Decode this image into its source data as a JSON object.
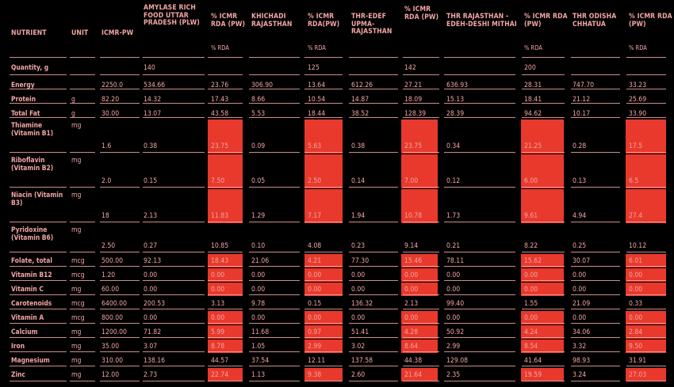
{
  "headers": [
    "NUTRIENT",
    "UNIT",
    "ICMR-PW",
    "AMYLASE RICH FOOD UTTAR PRADESH (PLW)",
    "% ICMR RDA (PW)",
    "KHICHADI RAJASTHAN",
    "% ICMR RDA(PW)",
    "THR-EDEF UPMA-RAJASTHAN",
    "% ICMR RDA (PW)",
    "THR RAJASTHAN - EDEH-DESHI MITHAI",
    "% ICMR RDA (PW)",
    "THR ODISHA CHHATUA",
    "% ICMR RDA (PW)"
  ],
  "subheaders": [
    "% RDA",
    "% RDA",
    "% RDA",
    "% RDA"
  ],
  "rows": [
    {
      "n": "Quantity, g",
      "u": "",
      "v": [
        "",
        "140",
        "",
        "",
        "125",
        "",
        "142",
        "",
        "200",
        "",
        ""
      ]
    },
    {
      "n": "Energy",
      "u": "",
      "v": [
        "2250.0",
        "534.66",
        "23.76",
        "306.90",
        "13.64",
        "612.26",
        "27.21",
        "636.93",
        "28.31",
        "747.70",
        "33.23"
      ]
    },
    {
      "n": "Protein",
      "u": "g",
      "v": [
        "82.20",
        "14.32",
        "17.43",
        "8.66",
        "10.54",
        "14.87",
        "18.09",
        "15.13",
        "18.41",
        "21.12",
        "25.69"
      ]
    },
    {
      "n": "Total Fat",
      "u": "g",
      "v": [
        "30.00",
        "13.07",
        "43.58",
        "5.53",
        "18.44",
        "38.52",
        "128.39",
        "28.39",
        "94.62",
        "10.17",
        "33.90"
      ]
    },
    {
      "n": "Thiamine (Vitamin B1)",
      "u": "mg",
      "v": [
        "1.6",
        "0.38",
        "23.75",
        "0.09",
        "5.63",
        "0.38",
        "23.75",
        "0.34",
        "21.25",
        "0.28",
        "17.5"
      ]
    },
    {
      "n": "Riboflavin (Vitamin B2)",
      "u": "mg",
      "v": [
        "2.0",
        "0.15",
        "7.50",
        "0.05",
        "2.50",
        "0.14",
        "7.00",
        "0.12",
        "6.00",
        "0.13",
        "6.5"
      ]
    },
    {
      "n": "Niacin (Vitamin B3)",
      "u": "mg",
      "v": [
        "18",
        "2.13",
        "11.83",
        "1.29",
        "7.17",
        "1.94",
        "10.78",
        "1.73",
        "9.61",
        "4.94",
        "27.4"
      ]
    },
    {
      "n": "Pyridoxine (Vitamin B6)",
      "u": "mg",
      "v": [
        "2.50",
        "0.27",
        "10.85",
        "0.10",
        "4.08",
        "0.23",
        "9.14",
        "0.21",
        "8.22",
        "0.25",
        "10.12"
      ]
    },
    {
      "n": "Folate, total",
      "u": "mcg",
      "v": [
        "500.00",
        "92.13",
        "18.43",
        "21.06",
        "4.21",
        "77.30",
        "15.46",
        "78.11",
        "15.62",
        "30.07",
        "6.01"
      ]
    },
    {
      "n": "Vitamin B12",
      "u": "mcg",
      "v": [
        "1.20",
        "0.00",
        "0.00",
        "0.00",
        "0.00",
        "0.00",
        "0.00",
        "0.00",
        "0.00",
        "0.00",
        "0.00"
      ]
    },
    {
      "n": "Vitamin C",
      "u": "mg",
      "v": [
        "60.00",
        "0.00",
        "0.00",
        "0.00",
        "0.00",
        "0.00",
        "0.00",
        "0.00",
        "0.00",
        "0.00",
        "0.00"
      ]
    },
    {
      "n": "Carotenoids",
      "u": "mcg",
      "v": [
        "6400.00",
        "200.53",
        "3.13",
        "9.78",
        "0.15",
        "136.32",
        "2.13",
        "99.40",
        "1.55",
        "21.09",
        "0.33"
      ]
    },
    {
      "n": "Vitamin A",
      "u": "mcg",
      "v": [
        "800.00",
        "0.00",
        "0.00",
        "0.00",
        "0.00",
        "0.00",
        "0.00",
        "0.00",
        "0.00",
        "0.00",
        "0.00"
      ]
    },
    {
      "n": "Calcium",
      "u": "mg",
      "v": [
        "1200.00",
        "71.82",
        "5.99",
        "11.68",
        "0.97",
        "51.41",
        "4.28",
        "50.92",
        "4.24",
        "34.06",
        "2.84"
      ]
    },
    {
      "n": "Iron",
      "u": "mg",
      "v": [
        "35.00",
        "3.07",
        "8.78",
        "1.05",
        "2.99",
        "3.02",
        "8.64",
        "2.99",
        "8.54",
        "3.32",
        "9.50"
      ]
    },
    {
      "n": "Magnesium",
      "u": "mg",
      "v": [
        "310.00",
        "138.16",
        "44.57",
        "37.54",
        "12.11",
        "137.58",
        "44.38",
        "129.08",
        "41.64",
        "98.93",
        "31.91"
      ]
    },
    {
      "n": "Zinc",
      "u": "mg",
      "v": [
        "12.00",
        "2.73",
        "22.74",
        "1.13",
        "9.38",
        "2.60",
        "21.64",
        "2.35",
        "19.59",
        "3.24",
        "27.03"
      ]
    }
  ],
  "highlight_color": "#e8392c"
}
